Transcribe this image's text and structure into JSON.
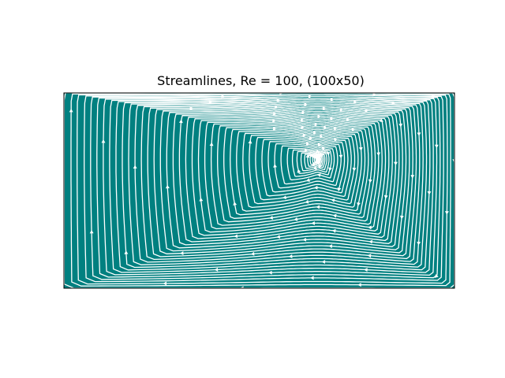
{
  "chart_data": {
    "type": "streamplot",
    "title": "Streamlines, Re = 100, (100x50)",
    "xlabel": "",
    "ylabel": "",
    "xlim": [
      0,
      2
    ],
    "ylim": [
      0,
      1
    ],
    "grid": false,
    "axes_ticks": false,
    "background_color": "#008080",
    "line_color": "#ffffff",
    "vortex_center": [
      1.3,
      0.66
    ],
    "flow_direction": "clockwise",
    "lid_direction": "right",
    "contour_levels": [
      0.999,
      0.972,
      0.948,
      0.92,
      0.895,
      0.87,
      0.845,
      0.82,
      0.795,
      0.77,
      0.745,
      0.72,
      0.695,
      0.67,
      0.645,
      0.62,
      0.595,
      0.57,
      0.545,
      0.52,
      0.495,
      0.47,
      0.445,
      0.42,
      0.395,
      0.37,
      0.345,
      0.32,
      0.295,
      0.27,
      0.245,
      0.22,
      0.195,
      0.17,
      0.145,
      0.12,
      0.1,
      0.082,
      0.066,
      0.052,
      0.04,
      0.03,
      0.021,
      0.014,
      0.008,
      0.004
    ]
  }
}
